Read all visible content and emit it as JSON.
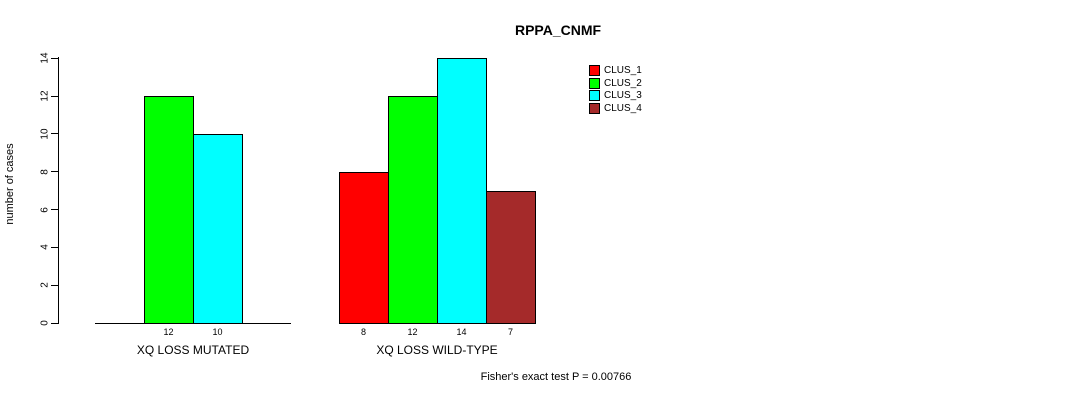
{
  "chart_data": {
    "type": "bar",
    "title": "RPPA_CNMF",
    "ylabel": "number of cases",
    "xlabel": "",
    "ylim": [
      0,
      14
    ],
    "yticks": [
      0,
      2,
      4,
      6,
      8,
      10,
      12,
      14
    ],
    "grid": false,
    "legend_position": "top-right",
    "categories": [
      "XQ LOSS MUTATED",
      "XQ LOSS WILD-TYPE"
    ],
    "series": [
      {
        "name": "CLUS_1",
        "color": "#ff0000",
        "values": [
          0,
          8
        ]
      },
      {
        "name": "CLUS_2",
        "color": "#00ff00",
        "values": [
          12,
          12
        ]
      },
      {
        "name": "CLUS_3",
        "color": "#00ffff",
        "values": [
          10,
          14
        ]
      },
      {
        "name": "CLUS_4",
        "color": "#a52a2a",
        "values": [
          0,
          7
        ]
      }
    ],
    "show_bar_values": true,
    "annotation": "Fisher's exact test P = 0.00766",
    "axis_color": "#000000",
    "background_color": "#ffffff"
  }
}
